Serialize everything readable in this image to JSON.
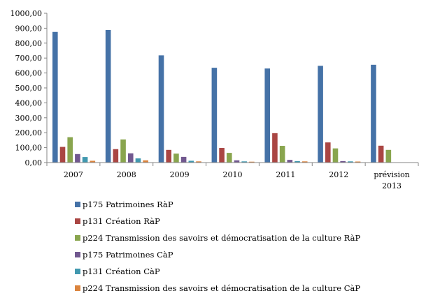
{
  "chart_data": {
    "type": "bar",
    "title": "",
    "xlabel": "",
    "ylabel": "",
    "ylim": [
      0,
      1000
    ],
    "yticks": [
      "0,00",
      "100,00",
      "200,00",
      "300,00",
      "400,00",
      "500,00",
      "600,00",
      "700,00",
      "800,00",
      "900,00",
      "1000,00"
    ],
    "categories": [
      [
        "2007"
      ],
      [
        "2008"
      ],
      [
        "2009"
      ],
      [
        "2010"
      ],
      [
        "2011"
      ],
      [
        "2012"
      ],
      [
        "prévision",
        "2013"
      ]
    ],
    "series": [
      {
        "name": "p175  Patrimoines RàP",
        "color": "#4572A7",
        "values": [
          875,
          888,
          718,
          635,
          630,
          648,
          655
        ]
      },
      {
        "name": "p131  Création RàP",
        "color": "#AA4643",
        "values": [
          105,
          90,
          85,
          98,
          197,
          135,
          113
        ]
      },
      {
        "name": "p224  Transmission des savoirs et démocratisation de la culture RàP",
        "color": "#89A54E",
        "values": [
          170,
          155,
          60,
          65,
          112,
          95,
          85
        ]
      },
      {
        "name": "p175 Patrimoines CàP",
        "color": "#71588F",
        "values": [
          57,
          62,
          38,
          15,
          18,
          10,
          0
        ]
      },
      {
        "name": "p131  Création CàP",
        "color": "#4198AF",
        "values": [
          37,
          28,
          12,
          8,
          10,
          8,
          0
        ]
      },
      {
        "name": "p224 Transmission des savoirs et démocratisation de la culture CàP",
        "color": "#DB843D",
        "values": [
          12,
          15,
          8,
          6,
          8,
          7,
          0
        ]
      }
    ],
    "grid": false,
    "legend": "bottom"
  }
}
